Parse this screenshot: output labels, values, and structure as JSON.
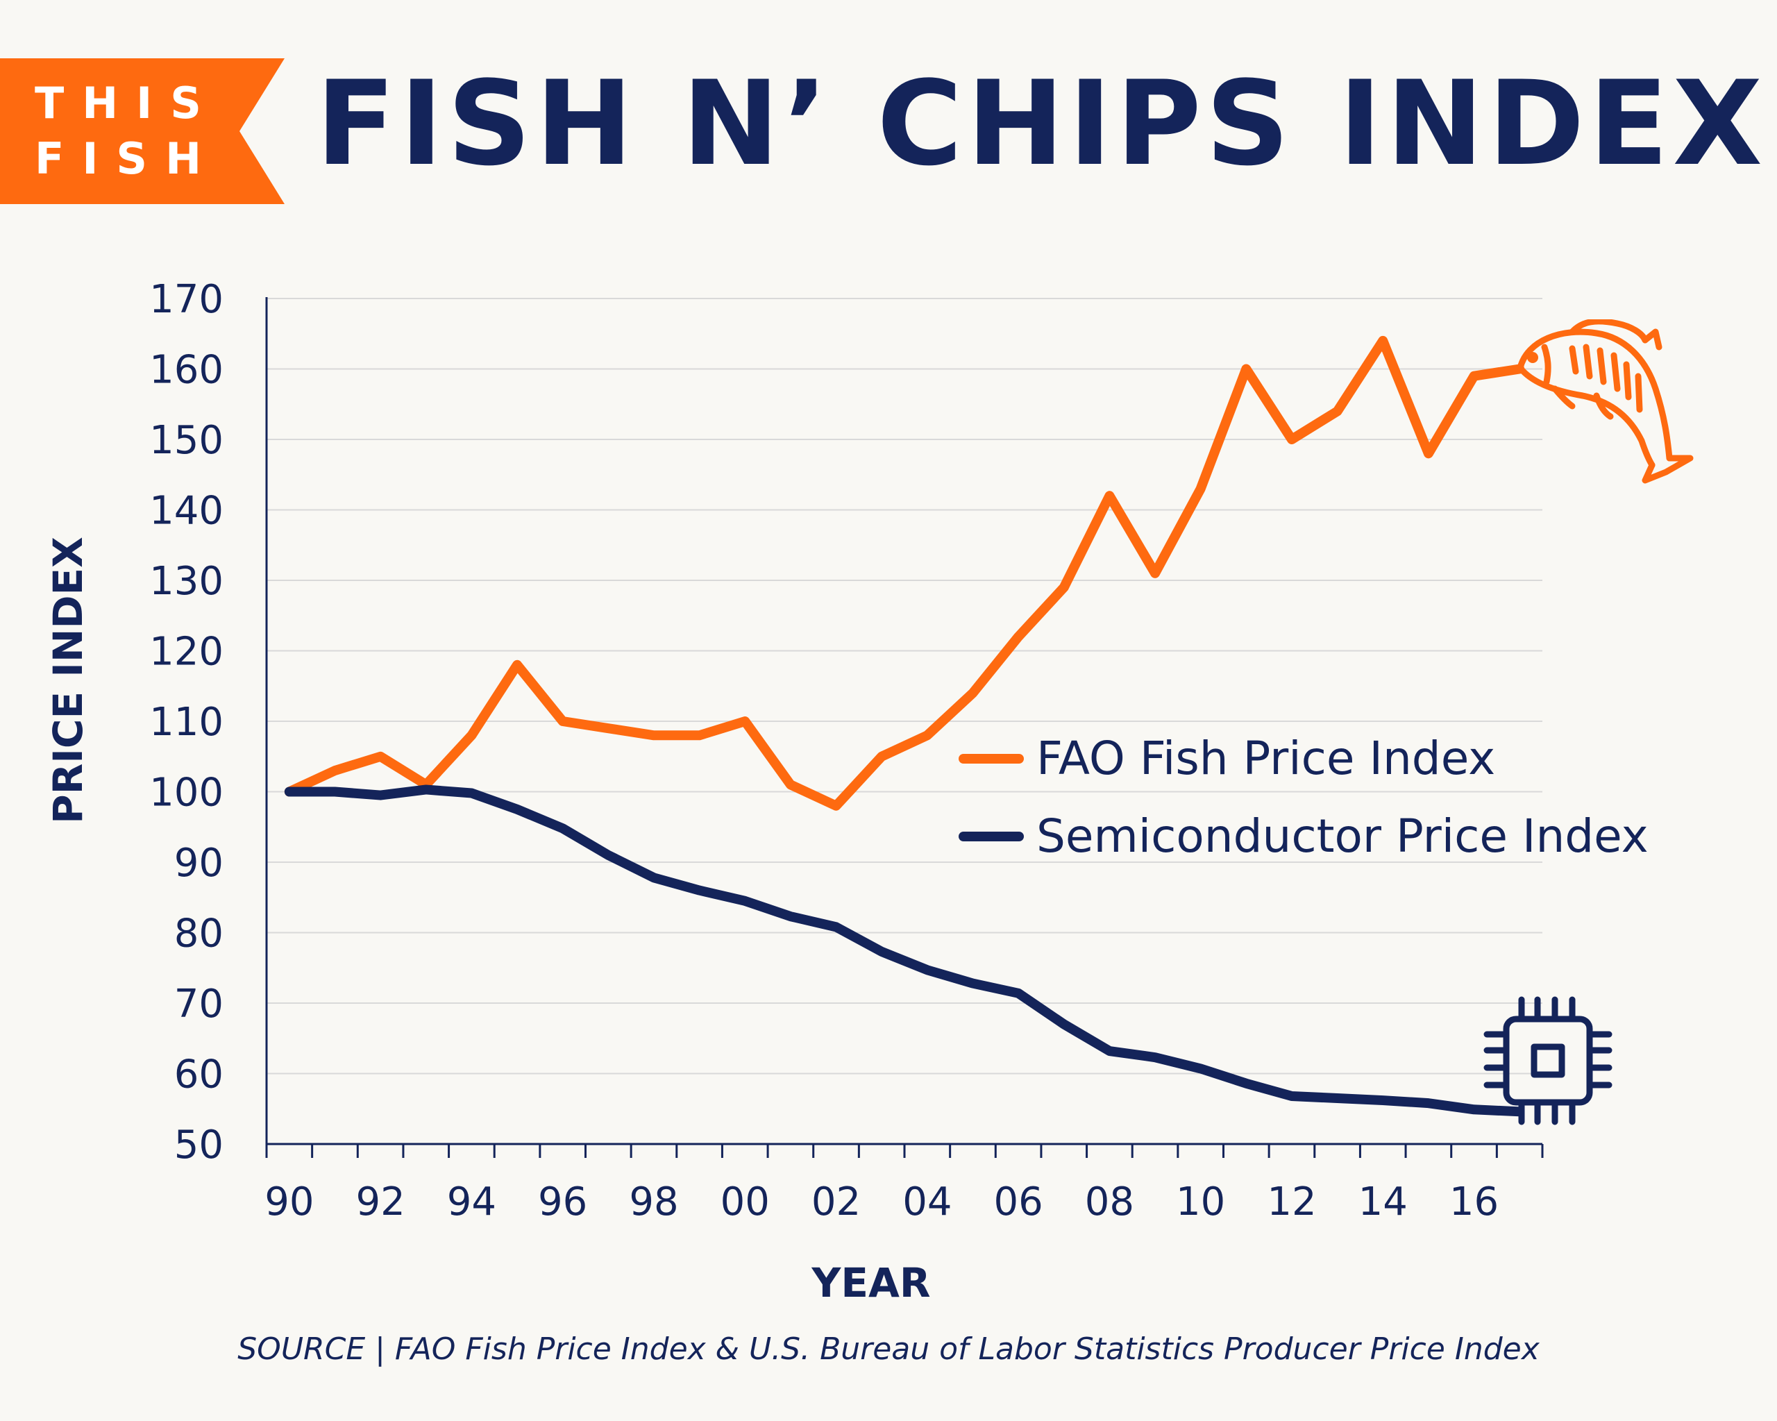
{
  "logo": {
    "line1": "THIS",
    "line2": "FISH"
  },
  "colors": {
    "navy": "#14245a",
    "orange": "#fe6a10",
    "grid": "#d9d9d9",
    "background": "#f9f8f4"
  },
  "icons": [
    "fish-icon",
    "microchip-icon"
  ],
  "source": "SOURCE | FAO Fish Price Index & U.S. Bureau of Labor Statistics Producer Price Index",
  "chart_data": {
    "type": "line",
    "title": "FISH N’ CHIPS INDEX",
    "xlabel": "YEAR",
    "ylabel": "PRICE INDEX",
    "x": [
      1990,
      1991,
      1992,
      1993,
      1994,
      1995,
      1996,
      1997,
      1998,
      1999,
      2000,
      2001,
      2002,
      2003,
      2004,
      2005,
      2006,
      2007,
      2008,
      2009,
      2010,
      2011,
      2012,
      2013,
      2014,
      2015,
      2016,
      2017
    ],
    "x_tick_values": [
      1990,
      1992,
      1994,
      1996,
      1998,
      2000,
      2002,
      2004,
      2006,
      2008,
      2010,
      2012,
      2014,
      2016
    ],
    "x_tick_labels": [
      "90",
      "92",
      "94",
      "96",
      "98",
      "00",
      "02",
      "04",
      "06",
      "08",
      "10",
      "12",
      "14",
      "16"
    ],
    "xlim": [
      1989.5,
      2017.5
    ],
    "ylim": [
      50,
      170
    ],
    "y_ticks": [
      50,
      60,
      70,
      80,
      90,
      100,
      110,
      120,
      130,
      140,
      150,
      160,
      170
    ],
    "grid": "horizontal",
    "legend_position": "center-right",
    "series": [
      {
        "name": "FAO Fish Price Index",
        "color": "#fe6a10",
        "values": [
          100,
          103,
          105,
          101,
          108,
          118,
          110,
          109,
          108,
          108,
          110,
          101,
          98,
          105,
          108,
          114,
          122,
          129,
          142,
          131,
          143,
          160,
          150,
          154,
          164,
          148,
          159,
          160
        ]
      },
      {
        "name": "Semiconductor Price Index",
        "color": "#14245a",
        "values": [
          100,
          100,
          99.5,
          100.3,
          99.8,
          97.5,
          94.8,
          91,
          87.8,
          86,
          84.5,
          82.3,
          80.8,
          77.3,
          74.7,
          72.8,
          71.4,
          67,
          63.2,
          62.3,
          60.7,
          58.6,
          56.8,
          56.5,
          56.2,
          55.8,
          54.9,
          54.6
        ]
      }
    ]
  }
}
